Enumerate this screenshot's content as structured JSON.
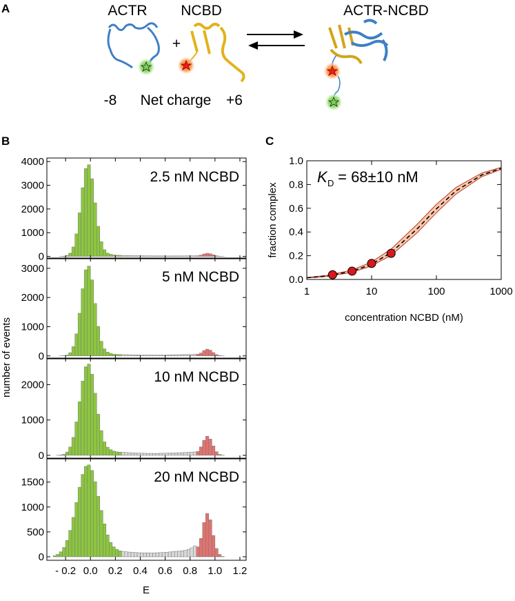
{
  "panel_a": {
    "label": "A",
    "actr": "ACTR",
    "ncbd": "NCBD",
    "plus": "+",
    "complex": "ACTR-NCBD",
    "charge_actr": "-8",
    "charge_title": "Net charge",
    "charge_ncbd": "+6"
  },
  "panel_b": {
    "label": "B",
    "ylabel": "number of events",
    "xlabel": "E"
  },
  "panel_c": {
    "label": "C"
  },
  "chart_data": [
    {
      "type": "histogram",
      "annotation": "2.5 nM NCBD",
      "xlim": [
        -0.35,
        1.25
      ],
      "ylim": [
        -100,
        4150
      ],
      "yticks": [
        0,
        1000,
        2000,
        3000,
        4000
      ],
      "series": [
        {
          "color": "#8cc63f",
          "bins": [
            -0.3,
            -0.275,
            -0.25,
            -0.225,
            -0.2,
            -0.175,
            -0.15,
            -0.125,
            -0.1,
            -0.075,
            -0.05,
            -0.025,
            0,
            0.025,
            0.05,
            0.075,
            0.1,
            0.125,
            0.15,
            0.175,
            0.2,
            0.225,
            0.25
          ],
          "counts": [
            0,
            0,
            2,
            9,
            38,
            137,
            398,
            950,
            1837,
            2895,
            3707,
            3865,
            3274,
            2257,
            1269,
            620,
            280,
            140,
            90,
            60,
            50,
            45
          ]
        },
        {
          "color": "#d9d9d9",
          "bins": [
            0.25,
            0.275,
            0.3,
            0.325,
            0.35,
            0.375,
            0.4,
            0.425,
            0.45,
            0.475,
            0.5,
            0.525,
            0.55,
            0.575,
            0.6,
            0.625,
            0.65,
            0.675,
            0.7,
            0.725,
            0.75,
            0.775,
            0.8,
            0.825,
            0.85
          ],
          "counts": [
            40,
            38,
            35,
            30,
            30,
            28,
            25,
            25,
            22,
            22,
            20,
            20,
            20,
            20,
            18,
            18,
            20,
            20,
            20,
            20,
            22,
            22,
            24,
            26
          ]
        },
        {
          "color": "#e0736f",
          "bins": [
            0.85,
            0.875,
            0.9,
            0.925,
            0.95,
            0.975,
            1.0,
            1.025,
            1.05,
            1.075,
            1.1
          ],
          "counts": [
            28,
            55,
            103,
            130,
            111,
            64,
            25,
            7,
            1,
            0
          ]
        }
      ]
    },
    {
      "type": "histogram",
      "annotation": "5 nM NCBD",
      "xlim": [
        -0.35,
        1.25
      ],
      "ylim": [
        -100,
        3350
      ],
      "yticks": [
        0,
        1000,
        2000,
        3000
      ],
      "series": [
        {
          "color": "#8cc63f",
          "bins": [
            -0.3,
            -0.275,
            -0.25,
            -0.225,
            -0.2,
            -0.175,
            -0.15,
            -0.125,
            -0.1,
            -0.075,
            -0.05,
            -0.025,
            0,
            0.025,
            0.05,
            0.075,
            0.1,
            0.125,
            0.15,
            0.175,
            0.2,
            0.225,
            0.25
          ],
          "counts": [
            0,
            0,
            2,
            7,
            30,
            109,
            316,
            755,
            1460,
            2300,
            2947,
            3072,
            2603,
            1794,
            1009,
            500,
            240,
            130,
            85,
            60,
            50,
            45
          ]
        },
        {
          "color": "#d9d9d9",
          "bins": [
            0.25,
            0.275,
            0.3,
            0.325,
            0.35,
            0.375,
            0.4,
            0.425,
            0.45,
            0.475,
            0.5,
            0.525,
            0.55,
            0.575,
            0.6,
            0.625,
            0.65,
            0.675,
            0.7,
            0.725,
            0.75,
            0.775,
            0.8,
            0.825,
            0.85
          ],
          "counts": [
            45,
            42,
            40,
            38,
            35,
            33,
            30,
            30,
            28,
            28,
            27,
            27,
            28,
            30,
            32,
            35,
            38,
            40,
            42,
            44,
            46,
            48,
            50,
            55
          ]
        },
        {
          "color": "#e0736f",
          "bins": [
            0.85,
            0.875,
            0.9,
            0.925,
            0.95,
            0.975,
            1.0,
            1.025,
            1.05,
            1.075,
            1.1
          ],
          "counts": [
            60,
            97,
            182,
            230,
            196,
            113,
            44,
            12,
            2,
            0
          ]
        }
      ]
    },
    {
      "type": "histogram",
      "annotation": "10 nM NCBD",
      "xlim": [
        -0.35,
        1.25
      ],
      "ylim": [
        -100,
        2750
      ],
      "yticks": [
        0,
        1000,
        2000
      ],
      "series": [
        {
          "color": "#8cc63f",
          "bins": [
            -0.3,
            -0.275,
            -0.25,
            -0.225,
            -0.2,
            -0.175,
            -0.15,
            -0.125,
            -0.1,
            -0.075,
            -0.05,
            -0.025,
            0,
            0.025,
            0.05,
            0.075,
            0.1,
            0.125,
            0.15,
            0.175,
            0.2,
            0.225,
            0.25
          ],
          "counts": [
            0,
            2,
            10,
            32,
            93,
            236,
            508,
            945,
            1515,
            2099,
            2506,
            2582,
            2294,
            1757,
            1165,
            700,
            380,
            230,
            160,
            120,
            100,
            90
          ]
        },
        {
          "color": "#d9d9d9",
          "bins": [
            0.25,
            0.275,
            0.3,
            0.325,
            0.35,
            0.375,
            0.4,
            0.425,
            0.45,
            0.475,
            0.5,
            0.525,
            0.55,
            0.575,
            0.6,
            0.625,
            0.65,
            0.675,
            0.7,
            0.725,
            0.75,
            0.775,
            0.8,
            0.825,
            0.85
          ],
          "counts": [
            85,
            80,
            75,
            70,
            65,
            62,
            60,
            58,
            55,
            55,
            55,
            55,
            58,
            60,
            62,
            65,
            68,
            70,
            72,
            75,
            80,
            85,
            90,
            95
          ]
        },
        {
          "color": "#e0736f",
          "bins": [
            0.85,
            0.875,
            0.9,
            0.925,
            0.95,
            0.975,
            1.0,
            1.025,
            1.05,
            1.075,
            1.1
          ],
          "counts": [
            110,
            240,
            427,
            540,
            459,
            265,
            103,
            27,
            5,
            0
          ]
        }
      ]
    },
    {
      "type": "histogram",
      "annotation": "20 nM NCBD",
      "xlim": [
        -0.35,
        1.25
      ],
      "ylim": [
        -70,
        1980
      ],
      "yticks": [
        0,
        500,
        1000,
        1500
      ],
      "xticks": [
        {
          "value": -0.2,
          "label": "- 0.2"
        },
        {
          "value": 0,
          "label": "0.0"
        },
        0.2,
        0.4,
        0.6,
        0.8,
        {
          "value": 1,
          "label": "1.0"
        },
        1.2
      ],
      "series": [
        {
          "color": "#8cc63f",
          "bins": [
            -0.3,
            -0.275,
            -0.25,
            -0.225,
            -0.2,
            -0.175,
            -0.15,
            -0.125,
            -0.1,
            -0.075,
            -0.05,
            -0.025,
            0,
            0.025,
            0.05,
            0.075,
            0.1,
            0.125,
            0.15,
            0.175,
            0.2,
            0.225,
            0.25
          ],
          "counts": [
            22,
            49,
            100,
            187,
            328,
            530,
            790,
            1091,
            1397,
            1654,
            1815,
            1844,
            1733,
            1508,
            1216,
            930,
            660,
            440,
            290,
            200,
            150,
            120
          ]
        },
        {
          "color": "#d9d9d9",
          "bins": [
            0.25,
            0.275,
            0.3,
            0.325,
            0.35,
            0.375,
            0.4,
            0.425,
            0.45,
            0.475,
            0.5,
            0.525,
            0.55,
            0.575,
            0.6,
            0.625,
            0.65,
            0.675,
            0.7,
            0.725,
            0.75,
            0.775,
            0.8,
            0.825,
            0.85
          ],
          "counts": [
            110,
            100,
            95,
            90,
            85,
            82,
            80,
            80,
            80,
            78,
            80,
            82,
            85,
            88,
            92,
            98,
            105,
            110,
            115,
            120,
            130,
            150,
            180,
            220
          ]
        },
        {
          "color": "#e0736f",
          "bins": [
            0.85,
            0.875,
            0.9,
            0.925,
            0.95,
            0.975,
            1.0,
            1.025,
            1.05,
            1.075,
            1.1
          ],
          "counts": [
            200,
            368,
            689,
            870,
            743,
            428,
            167,
            47,
            7,
            0
          ]
        }
      ]
    },
    {
      "type": "line",
      "xlabel": "concentration NCBD (nM)",
      "ylabel": "fraction complex",
      "annotation_k": "K",
      "annotation_sub": "D",
      "annotation_rest": " = 68±10 nM",
      "xscale": "log",
      "xlim": [
        1,
        1000
      ],
      "xticks": [
        1,
        10,
        100,
        1000
      ],
      "ylim": [
        0,
        1
      ],
      "yticks": [
        {
          "value": 0,
          "label": "0.0"
        },
        0.2,
        0.4,
        0.6,
        0.8,
        {
          "value": 1,
          "label": "1.0"
        }
      ],
      "x": [
        1,
        2,
        5,
        10,
        20,
        50,
        100,
        200,
        500,
        1000
      ],
      "series": [
        {
          "color": "#000000",
          "values": [
            0.0145,
            0.0286,
            0.0685,
            0.128,
            0.227,
            0.424,
            0.595,
            0.746,
            0.88,
            0.936
          ]
        }
      ],
      "band": {
        "color": "#f7c9ac",
        "edge_color": "#c0392b",
        "upper": [
          0.0169,
          0.0333,
          0.0794,
          0.147,
          0.256,
          0.463,
          0.633,
          0.775,
          0.896,
          0.945
        ],
        "lower": [
          0.0127,
          0.025,
          0.06,
          0.114,
          0.204,
          0.391,
          0.562,
          0.719,
          0.865,
          0.928
        ]
      },
      "points": {
        "color": "#d7191c",
        "x": [
          2.5,
          5,
          10,
          20
        ],
        "values": [
          0.04,
          0.07,
          0.135,
          0.22
        ]
      }
    }
  ]
}
